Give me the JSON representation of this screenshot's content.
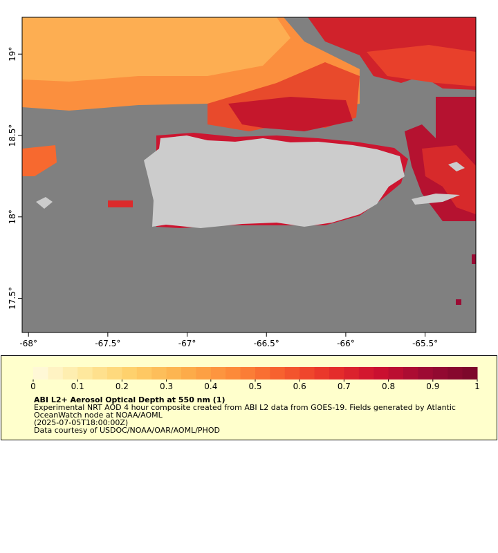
{
  "map": {
    "xlim": [
      -68.04,
      -65.18
    ],
    "ylim": [
      17.29,
      19.226
    ],
    "xticks": [
      {
        "value": -68,
        "label": "-68°"
      },
      {
        "value": -67.5,
        "label": "-67.5°"
      },
      {
        "value": -67,
        "label": "-67°"
      },
      {
        "value": -66.5,
        "label": "-66.5°"
      },
      {
        "value": -66,
        "label": "-66°"
      },
      {
        "value": -65.5,
        "label": "-65.5°"
      }
    ],
    "yticks": [
      {
        "value": 17.5,
        "label": "17.5°"
      },
      {
        "value": 18,
        "label": "18°"
      },
      {
        "value": 18.5,
        "label": "18.5°"
      },
      {
        "value": 19,
        "label": "19°"
      }
    ]
  },
  "colorbar": {
    "range": [
      0,
      1
    ],
    "ticks": [
      0,
      0.1,
      0.2,
      0.3,
      0.4,
      0.5,
      0.6,
      0.7,
      0.8,
      0.9,
      1
    ],
    "colors": [
      "#fffbe0",
      "#fee9a0",
      "#fed06a",
      "#fdb04c",
      "#fd8c3a",
      "#f7602e",
      "#e8312a",
      "#cc1030",
      "#9a0a33",
      "#78062a"
    ]
  },
  "caption": {
    "title": "ABI L2+ Aerosol Optical Depth at 550 nm (1)",
    "lines": [
      "Experimental NRT AOD 4 hour composite created from ABI L2 data from GOES-19. Fields generated by Atlantic",
      "OceanWatch node at NOAA/AOML",
      "(2025-07-05T18:00:00Z)",
      "Data courtesy of USDOC/NOAA/OAR/AOML/PHOD"
    ]
  }
}
